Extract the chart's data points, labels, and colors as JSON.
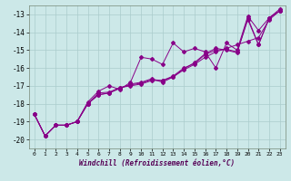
{
  "title": "",
  "xlabel": "Windchill (Refroidissement éolien,°C)",
  "bg_color": "#cce8e8",
  "grid_color": "#aacccc",
  "line_color": "#880088",
  "xlim": [
    -0.5,
    23.5
  ],
  "ylim": [
    -20.5,
    -12.5
  ],
  "yticks": [
    -20,
    -19,
    -18,
    -17,
    -16,
    -15,
    -14,
    -13
  ],
  "xticks": [
    0,
    1,
    2,
    3,
    4,
    5,
    6,
    7,
    8,
    9,
    10,
    11,
    12,
    13,
    14,
    15,
    16,
    17,
    18,
    19,
    20,
    21,
    22,
    23
  ],
  "s1": [
    -18.6,
    -19.8,
    -19.2,
    -19.2,
    -19.0,
    -18.0,
    -17.5,
    -17.4,
    -17.1,
    -17.0,
    -16.9,
    -16.7,
    -16.7,
    -16.5,
    -16.1,
    -15.8,
    -15.4,
    -15.1,
    -14.9,
    -14.7,
    -14.5,
    -14.3,
    -13.3,
    -12.8
  ],
  "s2": [
    -18.6,
    -19.8,
    -19.2,
    -19.2,
    -19.0,
    -17.9,
    -17.3,
    -17.0,
    -17.2,
    -16.8,
    -15.4,
    -15.5,
    -15.8,
    -14.6,
    -15.1,
    -14.9,
    -15.1,
    -16.0,
    -14.6,
    -15.0,
    -13.1,
    -13.9,
    -13.2,
    -12.7
  ],
  "s3": [
    -18.6,
    -19.8,
    -19.2,
    -19.2,
    -19.0,
    -18.0,
    -17.5,
    -17.4,
    -17.15,
    -16.9,
    -16.8,
    -16.6,
    -16.8,
    -16.5,
    -16.05,
    -15.7,
    -15.2,
    -14.9,
    -15.0,
    -15.15,
    -13.2,
    -14.7,
    -13.2,
    -12.8
  ],
  "s4": [
    -18.6,
    -19.8,
    -19.2,
    -19.2,
    -19.0,
    -18.0,
    -17.4,
    -17.35,
    -17.1,
    -16.95,
    -16.85,
    -16.65,
    -16.7,
    -16.45,
    -16.0,
    -15.75,
    -15.25,
    -15.0,
    -14.95,
    -15.1,
    -13.3,
    -14.7,
    -13.2,
    -12.8
  ]
}
